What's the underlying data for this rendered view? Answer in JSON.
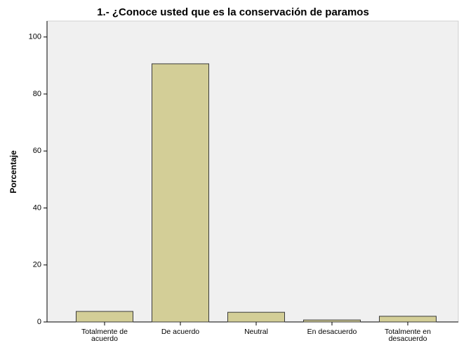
{
  "chart_data": {
    "type": "bar",
    "title": "1.- ¿Conoce usted que es la conservación de paramos",
    "ylabel": "Porcentaje",
    "categories": [
      "Totalmente de acuerdo",
      "De acuerdo",
      "Neutral",
      "En desacuerdo",
      "Totalmente en desacuerdo"
    ],
    "values": [
      3.7,
      90.6,
      3.4,
      0.7,
      2.0
    ],
    "color": "#d3ce97",
    "ylim": [
      0,
      105.6
    ],
    "yticks": [
      0,
      20,
      40,
      60,
      80,
      100
    ]
  }
}
